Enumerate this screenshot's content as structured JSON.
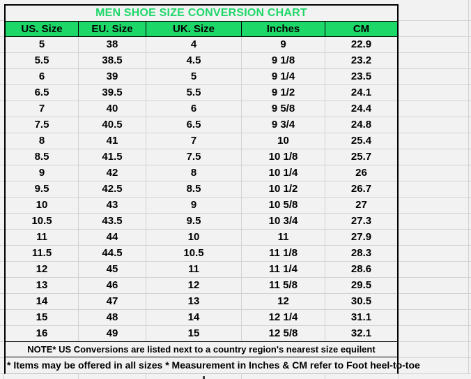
{
  "title": "MEN SHOE SIZE CONVERSION CHART",
  "table": {
    "headers": [
      "US. Size",
      "EU. Size",
      "UK. Size",
      "Inches",
      "CM"
    ],
    "rows": [
      [
        "5",
        "38",
        "4",
        "9",
        "22.9"
      ],
      [
        "5.5",
        "38.5",
        "4.5",
        "9 1/8",
        "23.2"
      ],
      [
        "6",
        "39",
        "5",
        "9 1/4",
        "23.5"
      ],
      [
        "6.5",
        "39.5",
        "5.5",
        "9 1/2",
        "24.1"
      ],
      [
        "7",
        "40",
        "6",
        "9 5/8",
        "24.4"
      ],
      [
        "7.5",
        "40.5",
        "6.5",
        "9 3/4",
        "24.8"
      ],
      [
        "8",
        "41",
        "7",
        "10",
        "25.4"
      ],
      [
        "8.5",
        "41.5",
        "7.5",
        "10 1/8",
        "25.7"
      ],
      [
        "9",
        "42",
        "8",
        "10 1/4",
        "26"
      ],
      [
        "9.5",
        "42.5",
        "8.5",
        "10 1/2",
        "26.7"
      ],
      [
        "10",
        "43",
        "9",
        "10 5/8",
        "27"
      ],
      [
        "10.5",
        "43.5",
        "9.5",
        "10 3/4",
        "27.3"
      ],
      [
        "11",
        "44",
        "10",
        "11",
        "27.9"
      ],
      [
        "11.5",
        "44.5",
        "10.5",
        "11 1/8",
        "28.3"
      ],
      [
        "12",
        "45",
        "11",
        "11 1/4",
        "28.6"
      ],
      [
        "13",
        "46",
        "12",
        "11 5/8",
        "29.5"
      ],
      [
        "14",
        "47",
        "13",
        "12",
        "30.5"
      ],
      [
        "15",
        "48",
        "14",
        "12 1/4",
        "31.1"
      ],
      [
        "16",
        "49",
        "15",
        "12 5/8",
        "32.1"
      ]
    ]
  },
  "notes": {
    "note1": "NOTE* US Conversions are listed next to a country region's nearest size equilent",
    "note2": "* Items may be offered in all sizes * Measurement in Inches & CM refer to Foot heel-to-toe"
  },
  "colors": {
    "accent_green": "#1ed769",
    "cell_background": "#f2f2f2",
    "gridline_gray": "#d2d2d2",
    "table_border_black": "#000000"
  }
}
